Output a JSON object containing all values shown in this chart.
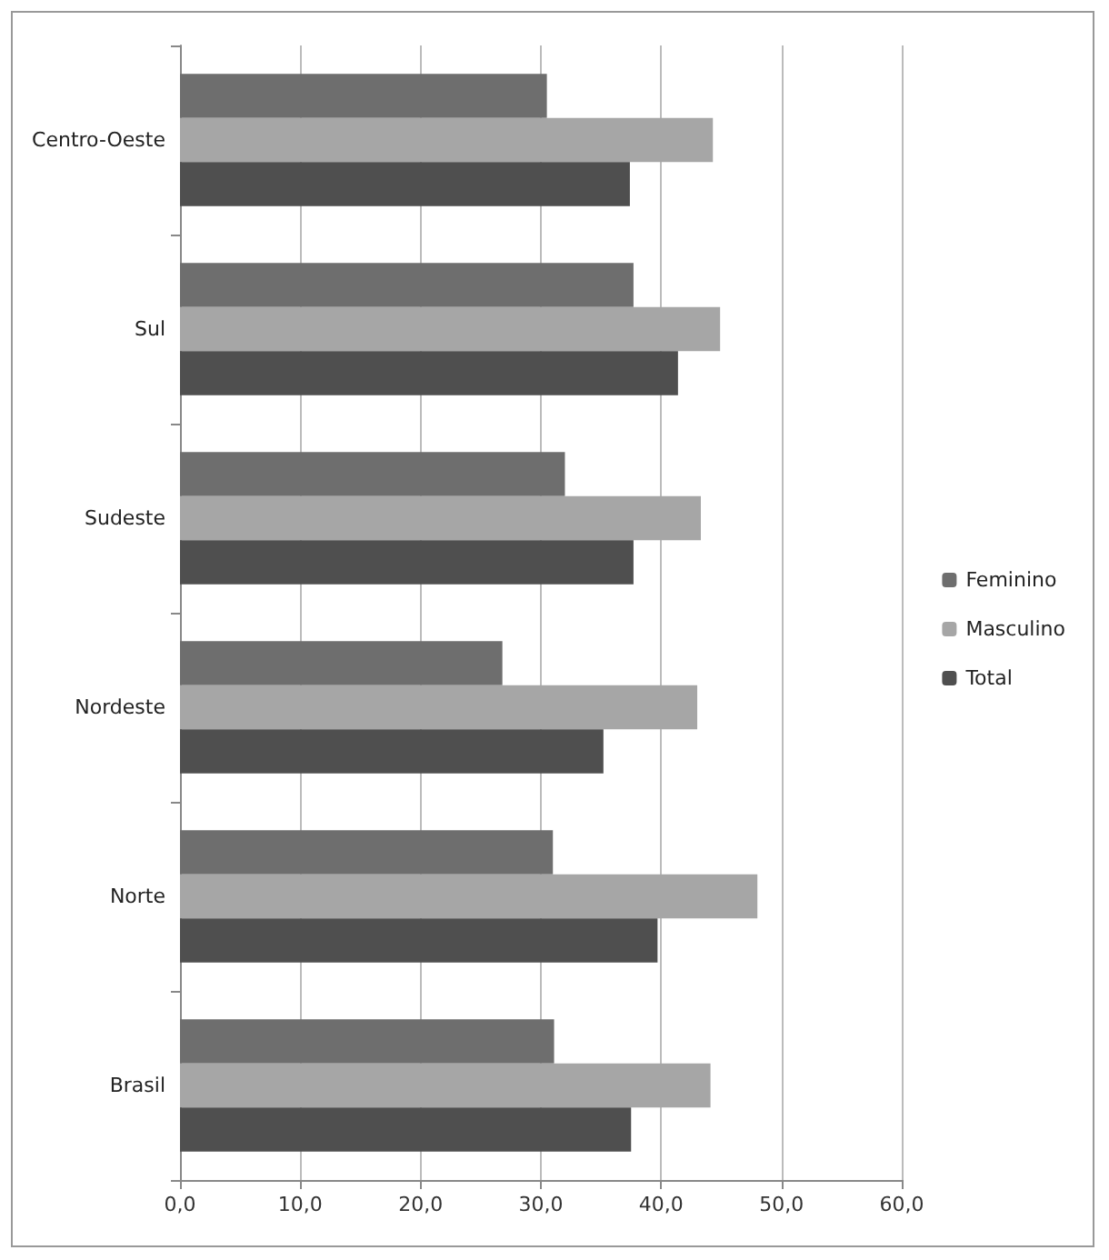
{
  "chart_data": {
    "type": "bar",
    "orientation": "horizontal",
    "categories": [
      "Centro-Oeste",
      "Sul",
      "Sudeste",
      "Nordeste",
      "Norte",
      "Brasil"
    ],
    "series": [
      {
        "name": "Feminino",
        "color": "#6e6e6e",
        "values": [
          30.5,
          37.7,
          32.0,
          26.8,
          31.0,
          31.1
        ]
      },
      {
        "name": "Masculino",
        "color": "#a6a6a6",
        "values": [
          44.3,
          44.9,
          43.3,
          43.0,
          48.0,
          44.1
        ]
      },
      {
        "name": "Total",
        "color": "#4f4f4f",
        "values": [
          37.4,
          41.4,
          37.7,
          35.2,
          39.7,
          37.5
        ]
      }
    ],
    "xlim": [
      0,
      60
    ],
    "xticks": [
      {
        "value": 0,
        "label": "0,0"
      },
      {
        "value": 10,
        "label": "10,0"
      },
      {
        "value": 20,
        "label": "20,0"
      },
      {
        "value": 30,
        "label": "30,0"
      },
      {
        "value": 40,
        "label": "40,0"
      },
      {
        "value": 50,
        "label": "50,0"
      },
      {
        "value": 60,
        "label": "60,0"
      }
    ],
    "grid": "x",
    "legend": "right"
  }
}
